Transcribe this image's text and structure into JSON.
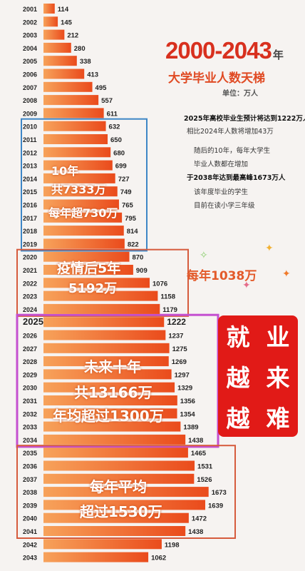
{
  "chart_data": {
    "type": "bar",
    "orientation": "horizontal",
    "title": "2000-2043",
    "title_suffix": "年",
    "subtitle": "大学毕业人数天梯",
    "unit": "单位：万人",
    "categories": [
      "2001",
      "2002",
      "2003",
      "2004",
      "2005",
      "2006",
      "2007",
      "2008",
      "2009",
      "2010",
      "2011",
      "2012",
      "2013",
      "2014",
      "2015",
      "2016",
      "2017",
      "2018",
      "2019",
      "2020",
      "2021",
      "2022",
      "2023",
      "2024",
      "2025",
      "2026",
      "2027",
      "2028",
      "2029",
      "2030",
      "2031",
      "2032",
      "2033",
      "2034",
      "2035",
      "2036",
      "2037",
      "2038",
      "2039",
      "2040",
      "2041",
      "2042",
      "2043"
    ],
    "values": [
      114,
      145,
      212,
      280,
      338,
      413,
      495,
      557,
      611,
      632,
      650,
      680,
      699,
      727,
      749,
      765,
      795,
      814,
      822,
      870,
      909,
      1076,
      1158,
      1179,
      1222,
      1237,
      1275,
      1269,
      1297,
      1329,
      1356,
      1354,
      1389,
      1438,
      1465,
      1531,
      1526,
      1673,
      1639,
      1472,
      1438,
      1198,
      1062
    ],
    "value_labels": [
      "114",
      "145",
      "212",
      "280",
      "338",
      "413",
      "495",
      "557",
      "611",
      "632",
      "650",
      "680",
      "699",
      "727",
      "749",
      "765",
      "795",
      "814",
      "822",
      "870",
      "909",
      "1076",
      "1158",
      "1179",
      "1222",
      "1237",
      "1275",
      "1269",
      "1297",
      "1329",
      "1356",
      "1354",
      "1389",
      "1438",
      "1465",
      "1531",
      "1526",
      "1673",
      "1639",
      "1472",
      "1438",
      "1198",
      "1062"
    ],
    "highlight_category": "2025",
    "colors": {
      "bar_start": "#f7a25a",
      "bar_end": "#ea4b1c",
      "label": "#222222",
      "title": "#d8301e"
    },
    "groups": [
      {
        "from": "2010",
        "to": "2019",
        "border": "#3d86c6",
        "lines": [
          "10年",
          "共7333万",
          "每年超730万"
        ]
      },
      {
        "from": "2020",
        "to": "2024",
        "border": "#d65b3d",
        "lines": [
          "疫情后5年",
          "5192万"
        ]
      },
      {
        "from": "2025",
        "to": "2034",
        "border": "#c44fd0",
        "lines": [
          "未来十年",
          "共13166万",
          "年均超过1300万"
        ]
      },
      {
        "from": "2035",
        "to": "2041",
        "border": "#d65b3d",
        "lines": [
          "每年平均",
          "超过1530万"
        ]
      }
    ]
  },
  "notes": {
    "n1": "2025年高校毕业生预计将达到1222万人",
    "n2": "相比2024年人数将增加43万",
    "n3": "随后的10年，每年大学生",
    "n4": "毕业人数都在增加",
    "n5": "于2038年达到最高峰1673万人",
    "n6": "该年度毕业的学生",
    "n7": "目前在读小学三年级"
  },
  "side_label": "每年1038万",
  "slogan": [
    "就",
    "业",
    "越",
    "来",
    "越",
    "难"
  ]
}
